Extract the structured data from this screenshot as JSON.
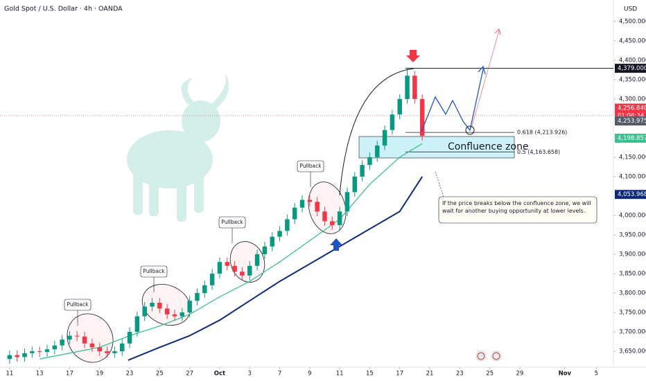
{
  "chart_data": {
    "type": "candlestick",
    "title": "Gold Spot / U.S. Dollar · 4h · OANDA",
    "currency": "USD",
    "x": [
      0,
      0.25,
      0.5,
      0.75,
      1,
      1.25,
      1.5,
      1.75,
      2,
      2.25,
      2.5,
      2.75,
      3,
      3.25,
      3.5,
      3.75,
      4,
      4.25,
      4.5,
      4.75,
      5,
      5.25,
      5.5,
      5.75,
      6,
      6.25,
      6.5,
      6.75,
      7,
      7.25,
      7.5,
      7.75,
      8,
      8.25,
      8.5,
      8.75,
      9,
      9.25,
      9.5,
      9.75,
      10,
      10.25,
      10.5,
      10.75,
      11,
      11.25,
      11.5,
      11.75,
      12,
      12.25,
      12.5,
      12.75,
      13,
      13.25,
      13.5,
      13.75
    ],
    "open": [
      3630,
      3640,
      3635,
      3645,
      3650,
      3648,
      3655,
      3665,
      3680,
      3690,
      3688,
      3670,
      3660,
      3650,
      3645,
      3650,
      3670,
      3700,
      3740,
      3765,
      3775,
      3760,
      3745,
      3740,
      3750,
      3780,
      3800,
      3820,
      3850,
      3880,
      3870,
      3855,
      3845,
      3870,
      3900,
      3920,
      3945,
      3960,
      3990,
      4020,
      4040,
      4035,
      4010,
      3985,
      3975,
      4010,
      4060,
      4100,
      4130,
      4150,
      4180,
      4220,
      4260,
      4300,
      4360,
      4300
    ],
    "high": [
      3652,
      3652,
      3657,
      3662,
      3662,
      3667,
      3677,
      3692,
      3702,
      3702,
      3700,
      3682,
      3672,
      3662,
      3662,
      3682,
      3712,
      3752,
      3777,
      3787,
      3787,
      3772,
      3757,
      3762,
      3792,
      3812,
      3832,
      3862,
      3892,
      3892,
      3882,
      3867,
      3882,
      3912,
      3932,
      3957,
      3972,
      4002,
      4032,
      4052,
      4052,
      4047,
      4022,
      3997,
      4022,
      4072,
      4112,
      4142,
      4162,
      4192,
      4232,
      4272,
      4312,
      4379,
      4372,
      4312
    ],
    "low": [
      3618,
      3623,
      3623,
      3633,
      3636,
      3636,
      3643,
      3653,
      3668,
      3676,
      3658,
      3648,
      3638,
      3633,
      3633,
      3638,
      3658,
      3688,
      3728,
      3753,
      3748,
      3733,
      3728,
      3728,
      3738,
      3768,
      3788,
      3808,
      3838,
      3858,
      3843,
      3833,
      3833,
      3858,
      3888,
      3908,
      3933,
      3948,
      3978,
      4008,
      4023,
      3998,
      3973,
      3963,
      3963,
      3998,
      4048,
      4088,
      4118,
      4138,
      4168,
      4208,
      4248,
      4288,
      4288,
      4193
    ],
    "close": [
      3640,
      3635,
      3645,
      3650,
      3648,
      3655,
      3665,
      3680,
      3690,
      3688,
      3670,
      3660,
      3650,
      3645,
      3650,
      3670,
      3700,
      3740,
      3765,
      3775,
      3760,
      3745,
      3740,
      3750,
      3780,
      3800,
      3820,
      3850,
      3880,
      3870,
      3855,
      3845,
      3870,
      3900,
      3920,
      3945,
      3960,
      3990,
      4020,
      4040,
      4035,
      4010,
      3985,
      3975,
      4010,
      4060,
      4100,
      4130,
      4150,
      4180,
      4220,
      4260,
      4300,
      4360,
      4300,
      4205
    ],
    "up_color": "#089981",
    "down_color": "#f23645",
    "moving_averages": [
      {
        "color": "#3dbf8f",
        "x": [
          1,
          2,
          3,
          4,
          5,
          6,
          7,
          8,
          9,
          10,
          11,
          12,
          13,
          13.75
        ],
        "values": [
          3630,
          3645,
          3660,
          3690,
          3715,
          3745,
          3790,
          3830,
          3880,
          3935,
          3990,
          4080,
          4150,
          4185
        ]
      },
      {
        "color": "#0d2a7a",
        "x": [
          3.95,
          5,
          6,
          7,
          8,
          9,
          10,
          11,
          12,
          13,
          13.75
        ],
        "values": [
          3627,
          3660,
          3690,
          3730,
          3780,
          3830,
          3875,
          3920,
          3965,
          4010,
          4100
        ]
      }
    ],
    "xlim": [
      -0.32,
      20.12
    ],
    "xticks": [
      {
        "value": 0,
        "label": "11"
      },
      {
        "value": 1,
        "label": "13"
      },
      {
        "value": 2,
        "label": "17"
      },
      {
        "value": 3,
        "label": "19"
      },
      {
        "value": 4,
        "label": "23"
      },
      {
        "value": 5,
        "label": "25"
      },
      {
        "value": 6,
        "label": "27"
      },
      {
        "value": 7,
        "label": "Oct"
      },
      {
        "value": 8,
        "label": "3"
      },
      {
        "value": 9,
        "label": "7"
      },
      {
        "value": 10,
        "label": "9"
      },
      {
        "value": 11,
        "label": "11"
      },
      {
        "value": 12,
        "label": "15"
      },
      {
        "value": 13,
        "label": "17"
      },
      {
        "value": 14,
        "label": "21"
      },
      {
        "value": 15,
        "label": "23"
      },
      {
        "value": 16,
        "label": "25"
      },
      {
        "value": 17,
        "label": "29"
      },
      {
        "value": 18.5,
        "label": "Nov"
      },
      {
        "value": 19.55,
        "label": "5"
      }
    ],
    "ylim": [
      3609,
      4555
    ],
    "yticks": [
      {
        "value": 4500,
        "label": "4,500.000"
      },
      {
        "value": 4450,
        "label": "4,450.000"
      },
      {
        "value": 4400,
        "label": "4,400.000"
      },
      {
        "value": 4350,
        "label": "4,350.000"
      },
      {
        "value": 4300,
        "label": "4,300.000"
      },
      {
        "value": 4150,
        "label": "4,150.000"
      },
      {
        "value": 4100,
        "label": "4,100.000"
      },
      {
        "value": 4000,
        "label": "4,000.000"
      },
      {
        "value": 3950,
        "label": "3,950.000"
      },
      {
        "value": 3900,
        "label": "3,900.000"
      },
      {
        "value": 3850,
        "label": "3,850.000"
      },
      {
        "value": 3800,
        "label": "3,800.000"
      },
      {
        "value": 3750,
        "label": "3,750.000"
      },
      {
        "value": 3700,
        "label": "3,700.000"
      },
      {
        "value": 3650,
        "label": "3,650.000"
      }
    ],
    "grid": false,
    "price_labels": [
      {
        "value": 4379,
        "label": "4,379.000",
        "color": "#131722"
      },
      {
        "value": 4256.84,
        "label": "4,256.840",
        "color": "#f23645",
        "countdown": "01:06:34"
      },
      {
        "value": 4253.975,
        "label": "4,253.975",
        "color": "#555b66"
      },
      {
        "value": 4198.857,
        "label": "4,198.857",
        "color": "#3dbf8f"
      },
      {
        "value": 4053.968,
        "label": "4,053.968",
        "color": "#0d2a7a"
      }
    ],
    "fib_levels": [
      {
        "value": 4213.926,
        "label": "0.618 (4,213.926)"
      },
      {
        "value": 4163.658,
        "label": "0.5 (4,163.658)"
      }
    ],
    "pullback_labels": [
      "Pullback",
      "Pullback",
      "Pullback",
      "Pullback"
    ],
    "zone_label": "Confluence zone",
    "note": "If the price breaks below the confluence zone, we will wait for another buying opportunity at lower levels."
  }
}
